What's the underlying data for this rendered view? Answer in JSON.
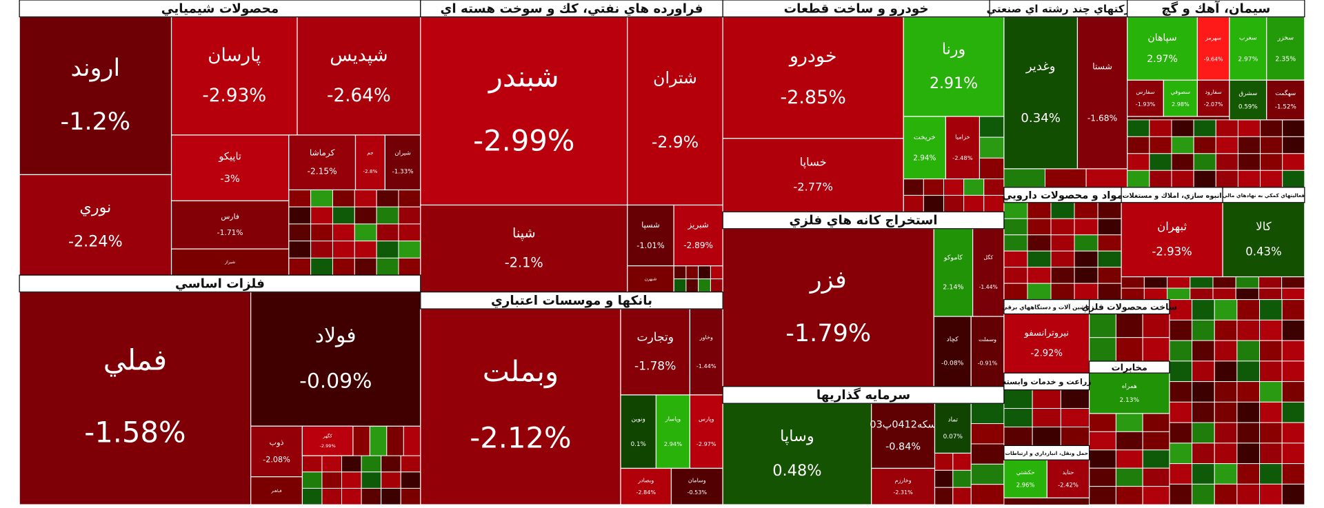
{
  "chart_data": {
    "type": "treemap",
    "groups": [
      {
        "title": "محصولات شيميايي",
        "tiles": [
          {
            "name": "اروند",
            "value": -1.2,
            "value_label": "-1.2%"
          },
          {
            "name": "نوري",
            "value": -2.24,
            "value_label": "-2.24%"
          },
          {
            "name": "پارسان",
            "value": -2.93,
            "value_label": "-2.93%"
          },
          {
            "name": "شپديس",
            "value": -2.64,
            "value_label": "-2.64%"
          },
          {
            "name": "تاپيكو",
            "value": -3,
            "value_label": "-3%"
          },
          {
            "name": "فارس",
            "value": -1.71,
            "value_label": "-1.71%"
          },
          {
            "name": "شيراز",
            "value": null,
            "value_label": null
          },
          {
            "name": "كرماشا",
            "value": -2.15,
            "value_label": "-2.15%"
          },
          {
            "name": "جم",
            "value": -2.8,
            "value_label": "-2.8%"
          },
          {
            "name": "شيران",
            "value": -1.33,
            "value_label": "-1.33%"
          }
        ]
      },
      {
        "title": "فلزات اساسي",
        "tiles": [
          {
            "name": "فملي",
            "value": -1.58,
            "value_label": "-1.58%"
          },
          {
            "name": "فولاد",
            "value": -0.09,
            "value_label": "-0.09%"
          },
          {
            "name": "ذوب",
            "value": -2.08,
            "value_label": "-2.08%"
          },
          {
            "name": "كگهر",
            "value": -2.99,
            "value_label": "-2.99%"
          },
          {
            "name": "فباهنر",
            "value": null,
            "value_label": null
          }
        ]
      },
      {
        "title": "فراورده هاي نفتي، كك و سوخت هسته اي",
        "tiles": [
          {
            "name": "شبندر",
            "value": -2.99,
            "value_label": "-2.99%"
          },
          {
            "name": "شتران",
            "value": -2.9,
            "value_label": "-2.9%"
          },
          {
            "name": "شپنا",
            "value": -2.1,
            "value_label": "-2.1%"
          },
          {
            "name": "شسپا",
            "value": -1.01,
            "value_label": "-1.01%"
          },
          {
            "name": "شبريز",
            "value": -2.89,
            "value_label": "-2.89%"
          },
          {
            "name": "شبهرن",
            "value": null,
            "value_label": null
          }
        ]
      },
      {
        "title": "بانكها و موسسات اعتباري",
        "tiles": [
          {
            "name": "وبملت",
            "value": -2.12,
            "value_label": "-2.12%"
          },
          {
            "name": "وتجارت",
            "value": -1.78,
            "value_label": "-1.78%"
          },
          {
            "name": "وخاور",
            "value": -1.44,
            "value_label": "-1.44%"
          },
          {
            "name": "ونوين",
            "value": 0.1,
            "value_label": "0.1%"
          },
          {
            "name": "وپاسار",
            "value": 2.94,
            "value_label": "2.94%"
          },
          {
            "name": "وپارس",
            "value": -2.97,
            "value_label": "-2.97%"
          },
          {
            "name": "وبصادر",
            "value": -2.84,
            "value_label": "-2.84%"
          },
          {
            "name": "وسامان",
            "value": -0.53,
            "value_label": "-0.53%"
          }
        ]
      },
      {
        "title": "خودرو و ساخت قطعات",
        "tiles": [
          {
            "name": "خودرو",
            "value": -2.85,
            "value_label": "-2.85%"
          },
          {
            "name": "خساپا",
            "value": -2.77,
            "value_label": "-2.77%"
          },
          {
            "name": "ورنا",
            "value": 2.91,
            "value_label": "2.91%"
          },
          {
            "name": "خريخت",
            "value": 2.94,
            "value_label": "2.94%"
          },
          {
            "name": "خزاميا",
            "value": -2.48,
            "value_label": "-2.48%"
          }
        ]
      },
      {
        "title": "استخراج كانه هاي فلزي",
        "tiles": [
          {
            "name": "فزر",
            "value": -1.79,
            "value_label": "-1.79%"
          },
          {
            "name": "كاموكو",
            "value": 2.14,
            "value_label": "2.14%"
          },
          {
            "name": "كگل",
            "value": -1.44,
            "value_label": "-1.44%"
          },
          {
            "name": "كچاد",
            "value": -0.08,
            "value_label": "-0.08%"
          },
          {
            "name": "وسملت",
            "value": -0.91,
            "value_label": "-0.91%"
          }
        ]
      },
      {
        "title": "سرمايه گذاريها",
        "tiles": [
          {
            "name": "وساپا",
            "value": 0.48,
            "value_label": "0.48%"
          },
          {
            "name": "سکه0412پ03",
            "value": -0.84,
            "value_label": "-0.84%"
          },
          {
            "name": "تماد",
            "value": 0.07,
            "value_label": "0.07%"
          },
          {
            "name": "وخارزم",
            "value": -2.31,
            "value_label": "-2.31%"
          }
        ]
      },
      {
        "title": "ركتهاي چند رشته اي صنعتي",
        "tiles": [
          {
            "name": "وغدير",
            "value": 0.34,
            "value_label": "0.34%"
          },
          {
            "name": "شستا",
            "value": -1.68,
            "value_label": "-1.68%"
          }
        ]
      },
      {
        "title": "سيمان، آهك و گچ",
        "tiles": [
          {
            "name": "سپاهان",
            "value": 2.97,
            "value_label": "2.97%"
          },
          {
            "name": "سهرمز",
            "value": -9.64,
            "value_label": "-9.64%"
          },
          {
            "name": "سغرب",
            "value": 2.97,
            "value_label": "2.97%"
          },
          {
            "name": "سخزر",
            "value": 2.35,
            "value_label": "2.35%"
          },
          {
            "name": "سفارس",
            "value": -1.93,
            "value_label": "-1.93%"
          },
          {
            "name": "سصوفي",
            "value": 2.98,
            "value_label": "2.98%"
          },
          {
            "name": "سفارود",
            "value": -2.07,
            "value_label": "-2.07%"
          },
          {
            "name": "سشرق",
            "value": 0.59,
            "value_label": "0.59%"
          },
          {
            "name": "سهگمت",
            "value": -1.52,
            "value_label": "-1.52%"
          }
        ]
      },
      {
        "title": "مواد و محصولات دارويي",
        "tiles": []
      },
      {
        "title": "انبوه سازي، املاك و مستغلات",
        "tiles": [
          {
            "name": "ثبهران",
            "value": -2.93,
            "value_label": "-2.93%"
          }
        ]
      },
      {
        "title": "فعاليتهاي كمكي به نهادهاي مالي",
        "tiles": [
          {
            "name": "كالا",
            "value": 0.43,
            "value_label": "0.43%"
          }
        ]
      },
      {
        "title": "ماشين آلات و دستگاههاي برقي",
        "tiles": [
          {
            "name": "نيروترانسفو",
            "value": -2.92,
            "value_label": "-2.92%"
          }
        ]
      },
      {
        "title": "ساخت محصولات فلزي",
        "tiles": []
      },
      {
        "title": "مخابرات",
        "tiles": [
          {
            "name": "همراه",
            "value": 2.13,
            "value_label": "2.13%"
          }
        ]
      },
      {
        "title": "زراعت و خدمات وابسته",
        "tiles": []
      },
      {
        "title": "حمل ونقل، انبارداري و ارتباطات",
        "tiles": [
          {
            "name": "حكشتي",
            "value": 2.96,
            "value_label": "2.96%"
          },
          {
            "name": "حتايد",
            "value": -2.42,
            "value_label": "-2.42%"
          }
        ]
      }
    ]
  }
}
